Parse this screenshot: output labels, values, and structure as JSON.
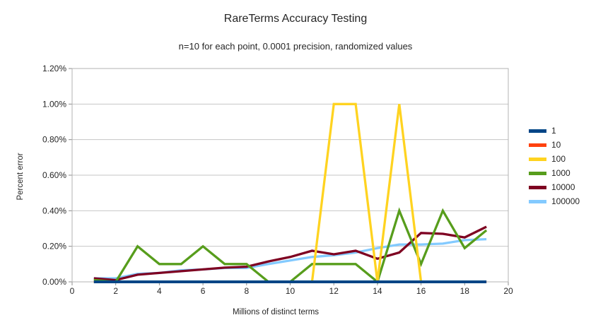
{
  "chart_data": {
    "type": "line",
    "title": "RareTerms Accuracy Testing",
    "subtitle": "n=10 for each point, 0.0001 precision, randomized values",
    "xlabel": "Millions of distinct terms",
    "ylabel": "Percent error",
    "grid": "horizontal",
    "legend_position": "right",
    "xlim": [
      0,
      20
    ],
    "x_tick_labels": [
      "0",
      "2",
      "4",
      "6",
      "8",
      "10",
      "12",
      "14",
      "16",
      "18",
      "20"
    ],
    "ylim_percent": [
      0,
      1.2
    ],
    "y_tick_labels": [
      "0.00%",
      "0.20%",
      "0.40%",
      "0.60%",
      "0.80%",
      "1.00%",
      "1.20%"
    ],
    "x": [
      1,
      2,
      3,
      4,
      5,
      6,
      7,
      8,
      9,
      10,
      11,
      12,
      13,
      14,
      15,
      16,
      17,
      18,
      19
    ],
    "series": [
      {
        "name": "1",
        "color": "#004586",
        "values_percent": [
          0,
          0,
          0,
          0,
          0,
          0,
          0,
          0,
          0,
          0,
          0,
          0,
          0,
          0,
          0,
          0,
          0,
          0,
          0
        ]
      },
      {
        "name": "10",
        "color": "#FF420E",
        "values_percent": [
          0,
          0,
          0,
          0,
          0,
          0,
          0,
          0,
          0,
          0,
          0,
          0,
          0,
          0,
          0,
          0,
          0,
          0,
          0
        ]
      },
      {
        "name": "100",
        "color": "#FFD320",
        "values_percent": [
          0,
          0,
          0,
          0,
          0,
          0,
          0,
          0,
          0,
          0,
          0,
          1.0,
          1.0,
          0,
          1.0,
          0,
          0,
          0,
          0
        ]
      },
      {
        "name": "1000",
        "color": "#579D1C",
        "values_percent": [
          0.01,
          0,
          0.2,
          0.1,
          0.1,
          0.2,
          0.1,
          0.1,
          0,
          0,
          0.1,
          0.1,
          0.1,
          0,
          0.4,
          0.1,
          0.4,
          0.19,
          0.29
        ]
      },
      {
        "name": "10000",
        "color": "#7E0021",
        "values_percent": [
          0.02,
          0.01,
          0.04,
          0.05,
          0.06,
          0.07,
          0.08,
          0.085,
          0.115,
          0.14,
          0.175,
          0.155,
          0.175,
          0.13,
          0.165,
          0.275,
          0.27,
          0.25,
          0.31
        ]
      },
      {
        "name": "100000",
        "color": "#83CAFF",
        "values_percent": [
          0.02,
          0.02,
          0.045,
          0.05,
          0.065,
          0.07,
          0.078,
          0.078,
          0.1,
          0.12,
          0.14,
          0.15,
          0.165,
          0.19,
          0.21,
          0.21,
          0.215,
          0.235,
          0.24
        ]
      }
    ]
  },
  "colors": {
    "background": "#ffffff",
    "text": "#262626",
    "gridline": "#c6c6c6",
    "plot_border": "#b3b3b3",
    "tick": "#8c8c8c"
  }
}
